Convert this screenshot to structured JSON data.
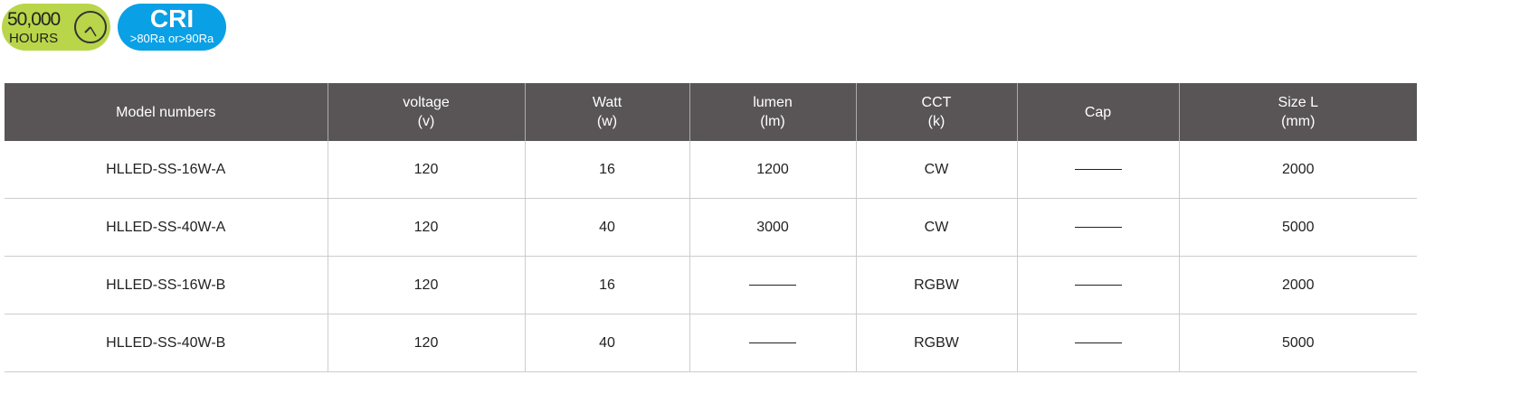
{
  "badges": {
    "hours": {
      "value": "50,000",
      "unit": "HOURS",
      "icon": "clock-icon",
      "color": "#b9d54a"
    },
    "cri": {
      "title": "CRI",
      "detail": ">80Ra or>90Ra",
      "color": "#0aa0e6"
    }
  },
  "table": {
    "headers": [
      [
        "Model numbers",
        ""
      ],
      [
        "voltage",
        "(v)"
      ],
      [
        "Watt",
        "(w)"
      ],
      [
        "lumen",
        "(lm)"
      ],
      [
        "CCT",
        "(k)"
      ],
      [
        "Cap",
        ""
      ],
      [
        "Size L",
        "(mm)"
      ]
    ],
    "rows": [
      [
        "HLLED-SS-16W-A",
        "120",
        "16",
        "1200",
        "CW",
        "——",
        "2000"
      ],
      [
        "HLLED-SS-40W-A",
        "120",
        "40",
        "3000",
        "CW",
        "——",
        "5000"
      ],
      [
        "HLLED-SS-16W-B",
        "120",
        "16",
        "——",
        "RGBW",
        "——",
        "2000"
      ],
      [
        "HLLED-SS-40W-B",
        "120",
        "40",
        "——",
        "RGBW",
        "——",
        "5000"
      ]
    ],
    "header_color": "#595556"
  }
}
